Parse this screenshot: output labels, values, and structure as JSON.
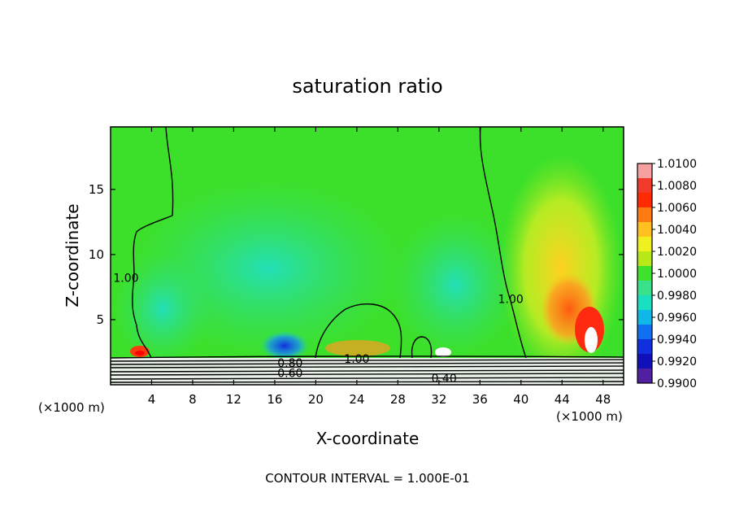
{
  "chart_data": {
    "type": "heatmap",
    "title": "saturation ratio",
    "xlabel": "X-coordinate",
    "ylabel": "Z-coordinate",
    "x_unit": "(×1000 m)",
    "x_unit_right": "(×1000 m)",
    "xlim": [
      0,
      50
    ],
    "ylim": [
      0,
      19.8
    ],
    "x_ticks": [
      4,
      8,
      12,
      16,
      20,
      24,
      28,
      32,
      36,
      40,
      44,
      48
    ],
    "y_ticks": [
      5,
      10,
      15
    ],
    "colorbar": {
      "min": 0.99,
      "max": 1.01,
      "labels": [
        "1.0100",
        "1.0080",
        "1.0060",
        "1.0040",
        "1.0020",
        "1.0000",
        "0.9980",
        "0.9960",
        "0.9940",
        "0.9920",
        "0.9900"
      ],
      "colors": [
        "#f7a0a0",
        "#f23a2a",
        "#ff2a00",
        "#ff7a10",
        "#ffc020",
        "#f0f020",
        "#b8e818",
        "#3ee22c",
        "#38e28a",
        "#18e0c0",
        "#10b8e8",
        "#1070f0",
        "#1030e0",
        "#1010b8",
        "#5020a0"
      ]
    },
    "contour_labels": [
      {
        "text": "1.00",
        "x": 1.5,
        "y": 8.2
      },
      {
        "text": "1.00",
        "x": 39.0,
        "y": 6.6
      },
      {
        "text": "1.00",
        "x": 24.0,
        "y": 2.0
      },
      {
        "text": "0.80",
        "x": 17.5,
        "y": 1.7
      },
      {
        "text": "0.60",
        "x": 17.5,
        "y": 0.9
      },
      {
        "text": "0.40",
        "x": 32.5,
        "y": 0.5
      }
    ],
    "footnote": "CONTOUR INTERVAL = 1.000E-01"
  }
}
